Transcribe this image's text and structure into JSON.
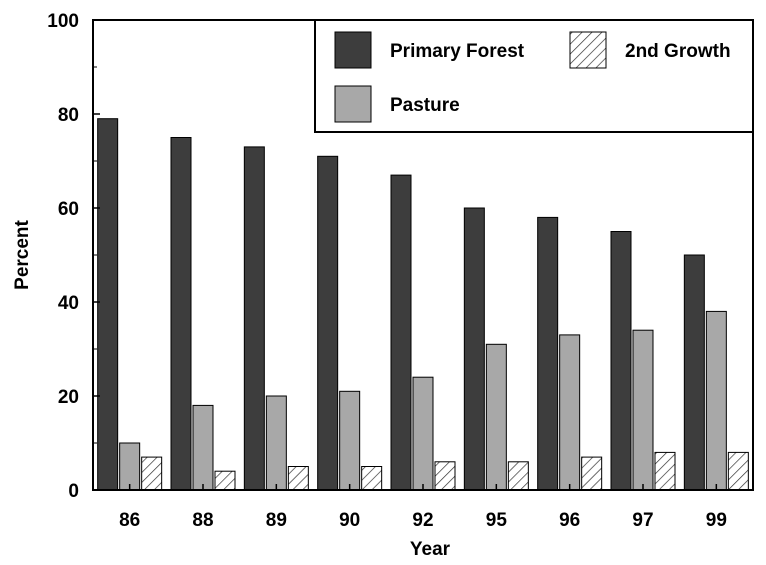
{
  "chart_data": {
    "type": "bar",
    "title": "",
    "xlabel": "Year",
    "ylabel": "Percent",
    "categories": [
      "86",
      "88",
      "89",
      "90",
      "92",
      "95",
      "96",
      "97",
      "99"
    ],
    "ylim": [
      0,
      100
    ],
    "yticks": [
      0,
      20,
      40,
      60,
      80,
      100
    ],
    "grid": false,
    "legend_position": "top-right",
    "series": [
      {
        "name": "Primary Forest",
        "values": [
          79,
          75,
          73,
          71,
          67,
          60,
          58,
          55,
          50
        ],
        "color": "#3d3d3d",
        "pattern": "solid"
      },
      {
        "name": "Pasture",
        "values": [
          10,
          18,
          20,
          21,
          24,
          31,
          33,
          34,
          38
        ],
        "color": "#a8a8a8",
        "pattern": "solid"
      },
      {
        "name": "2nd Growth",
        "values": [
          7,
          4,
          5,
          5,
          6,
          6,
          7,
          8,
          8
        ],
        "color": "#ffffff",
        "pattern": "hatch"
      }
    ],
    "legend_order": [
      "Primary Forest",
      "2nd Growth",
      "Pasture"
    ]
  }
}
